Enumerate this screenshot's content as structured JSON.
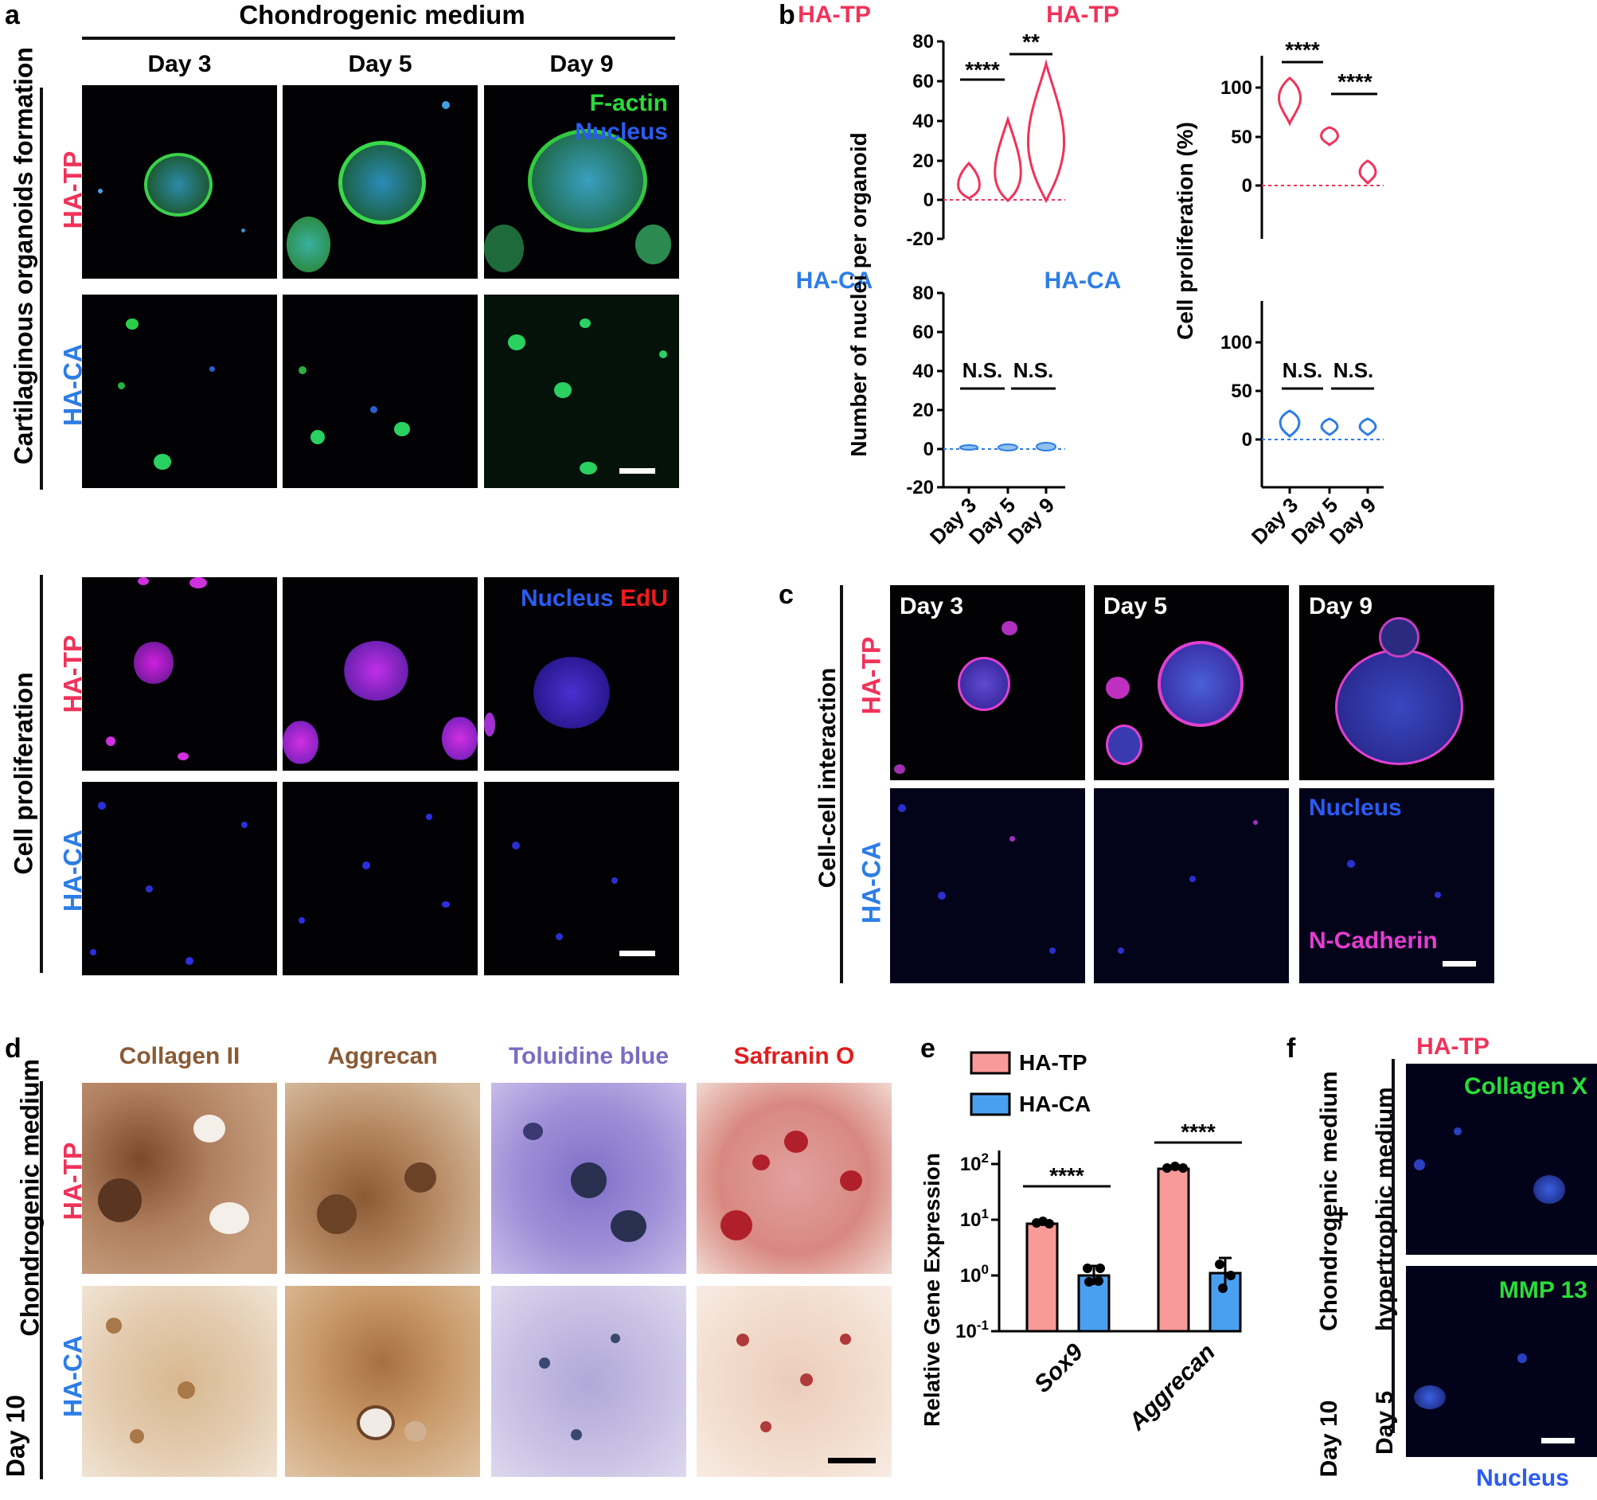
{
  "panel_letters": [
    "a",
    "b",
    "c",
    "d",
    "e",
    "f"
  ],
  "panel_a": {
    "top_header": "Chondrogenic medium",
    "days": [
      "Day 3",
      "Day 5",
      "Day 9"
    ],
    "section1_label": "Cartilaginous organoids formation",
    "section2_label": "Cell proliferation",
    "row_labels": [
      "HA-TP",
      "HA-CA"
    ],
    "stain1": [
      "F-actin",
      "Nucleus"
    ],
    "stain2": [
      "Nucleus",
      "EdU"
    ]
  },
  "panel_b": {
    "titles": [
      "HA-TP",
      "HA-TP",
      "HA-CA",
      "HA-CA"
    ],
    "ylabel_left": "Number of nuclei per organoid",
    "ylabel_right": "Cell proliferation (%)",
    "sig_tp_left": [
      "****",
      "**"
    ],
    "sig_tp_right": [
      "****",
      "****"
    ],
    "sig_ca": [
      "N.S.",
      "N.S.",
      "N.S.",
      "N.S."
    ],
    "xticks": [
      "Day 3",
      "Day 5",
      "Day 9"
    ],
    "yticks_left": [
      "80",
      "60",
      "40",
      "20",
      "0",
      "-20"
    ],
    "yticks_right": [
      "100",
      "50",
      "0"
    ]
  },
  "panel_c": {
    "side_label": "Cell-cell interaction",
    "row_labels": [
      "HA-TP",
      "HA-CA"
    ],
    "days": [
      "Day 3",
      "Day 5",
      "Day 9"
    ],
    "stain": [
      "Nucleus",
      "N-Cadherin"
    ]
  },
  "panel_d": {
    "columns": [
      "Collagen II",
      "Aggrecan",
      "Toluidine blue",
      "Safranin O"
    ],
    "side_label_top": "Chondrogenic medium",
    "side_label_bottom": "Day 10",
    "row_labels": [
      "HA-TP",
      "HA-CA"
    ]
  },
  "panel_f": {
    "title": "HA-TP",
    "side_label_1": "Chondrogenic medium",
    "side_label_plus": "+",
    "side_label_2": "hypertrophic medium",
    "day_1": "Day 10",
    "day_2": "Day 5",
    "stains": [
      "Collagen X",
      "MMP 13"
    ],
    "nucleus": "Nucleus"
  },
  "colors": {
    "tp": "#f0325a",
    "ca": "#2d7de6",
    "green": "#2adc3a",
    "blue_text": "#2a5cf0",
    "red_text": "#ee1c1c",
    "magenta_text": "#e63cd2",
    "brown": "#8a5a34",
    "toluidine": "#7b6cc2",
    "safranin": "#e01d1d"
  },
  "chart_data": [
    {
      "type": "violin",
      "title": "HA-TP",
      "ylabel": "Number of nuclei per organoid",
      "categories": [
        "Day 3",
        "Day 5",
        "Day 9"
      ],
      "ylim": [
        -20,
        80
      ],
      "medians": [
        7,
        17,
        28
      ],
      "ranges": [
        [
          1,
          16
        ],
        [
          0,
          40
        ],
        [
          0,
          68
        ]
      ],
      "significance": [
        "****",
        "**"
      ]
    },
    {
      "type": "violin",
      "title": "HA-CA",
      "ylabel": "Number of nuclei per organoid",
      "categories": [
        "Day 3",
        "Day 5",
        "Day 9"
      ],
      "ylim": [
        -20,
        80
      ],
      "medians": [
        1,
        1,
        1
      ],
      "significance": [
        "N.S.",
        "N.S."
      ]
    },
    {
      "type": "violin",
      "title": "HA-TP",
      "ylabel": "Cell proliferation (%)",
      "categories": [
        "Day 3",
        "Day 5",
        "Day 9"
      ],
      "ylim": [
        -50,
        130
      ],
      "medians": [
        90,
        52,
        14
      ],
      "ranges": [
        [
          78,
          102
        ],
        [
          45,
          60
        ],
        [
          5,
          24
        ]
      ],
      "significance": [
        "****",
        "****"
      ]
    },
    {
      "type": "violin",
      "title": "HA-CA",
      "ylabel": "Cell proliferation (%)",
      "categories": [
        "Day 3",
        "Day 5",
        "Day 9"
      ],
      "ylim": [
        -50,
        130
      ],
      "medians": [
        15,
        11,
        12
      ],
      "significance": [
        "N.S.",
        "N.S."
      ]
    },
    {
      "type": "bar",
      "ylabel": "Relative Gene Expression",
      "yscale": "log",
      "yticks": [
        "10-1",
        "100",
        "101",
        "102"
      ],
      "categories": [
        "Sox9",
        "Aggrecan"
      ],
      "series": [
        {
          "name": "HA-TP",
          "values": [
            8.5,
            80
          ]
        },
        {
          "name": "HA-CA",
          "values": [
            1.0,
            1.1
          ]
        }
      ],
      "significance": [
        "****",
        "****"
      ]
    }
  ]
}
